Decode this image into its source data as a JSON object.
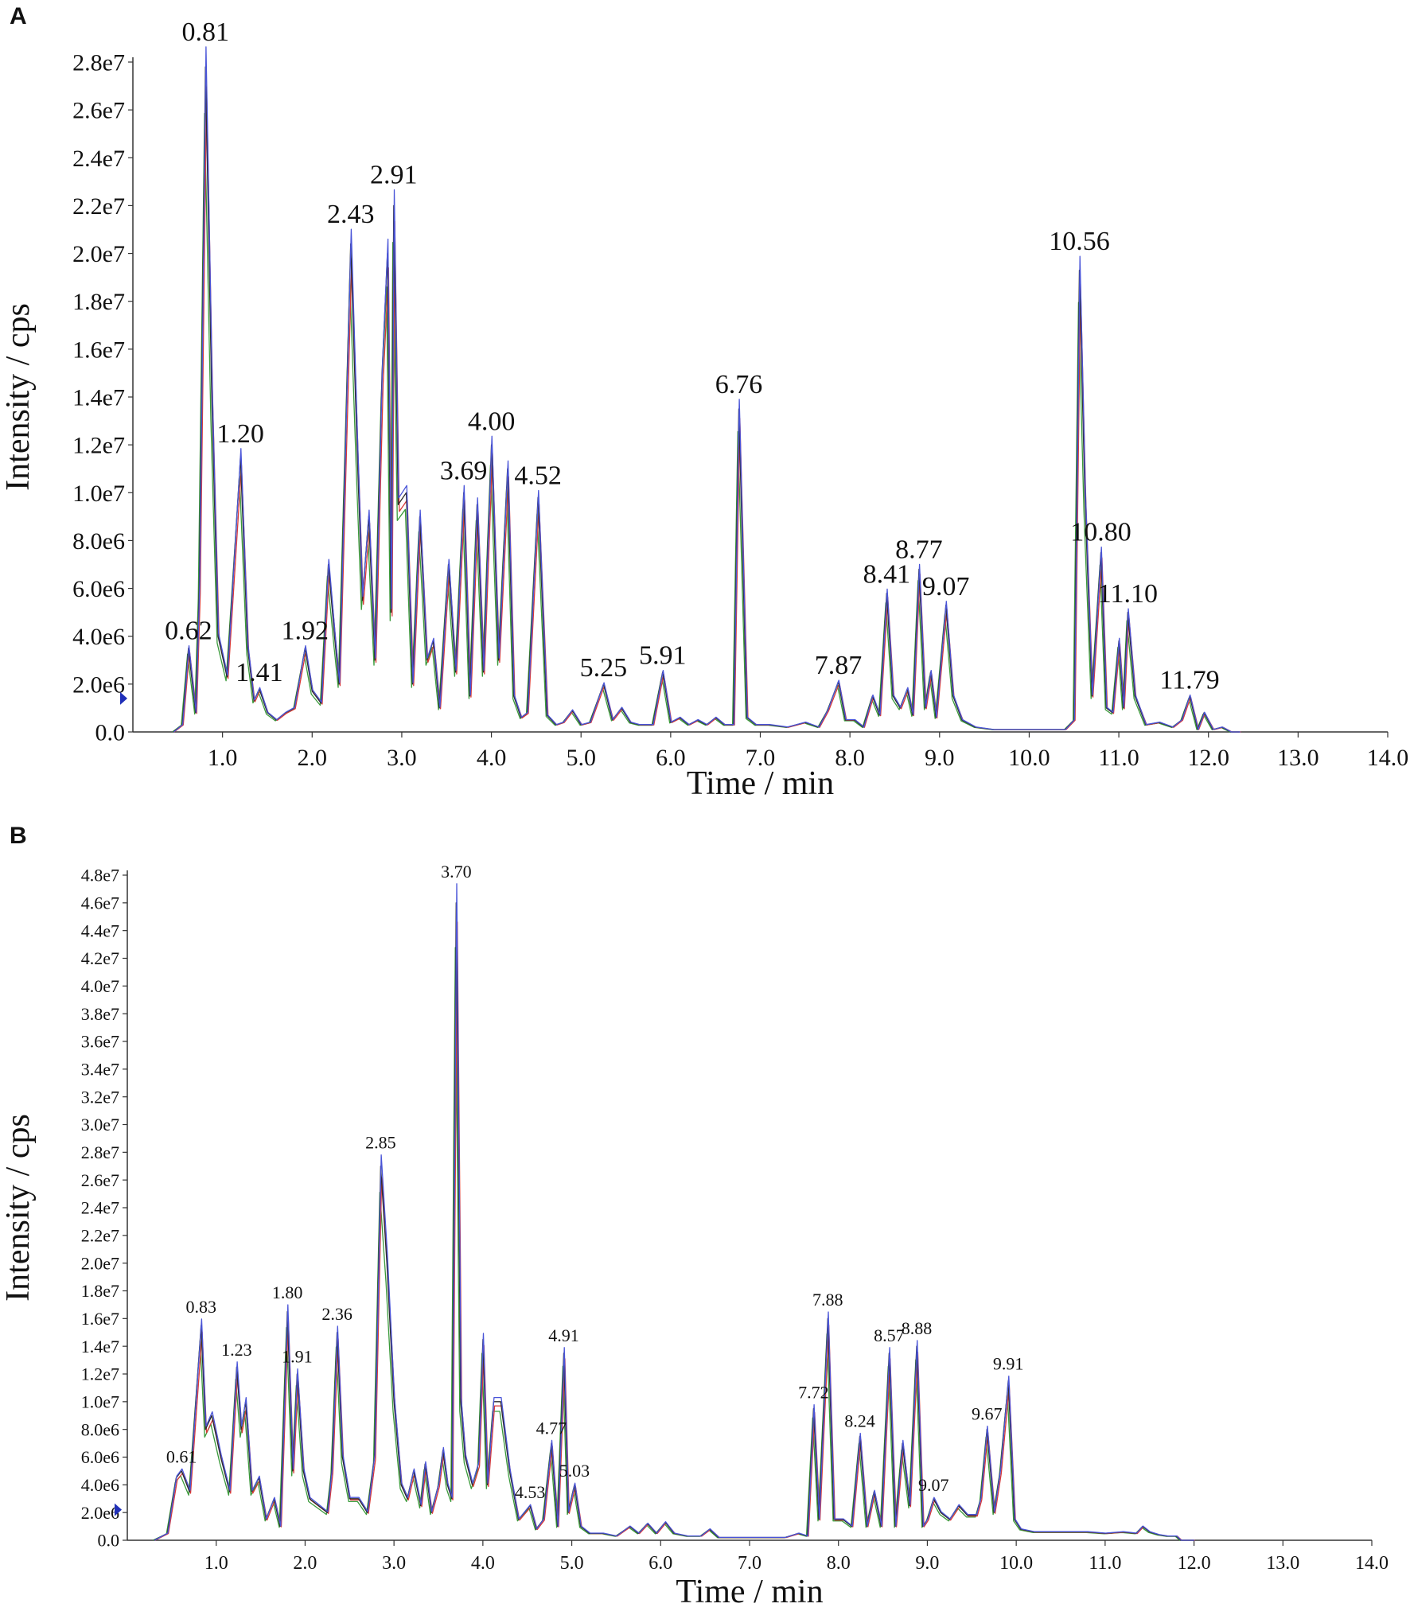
{
  "panels": [
    {
      "id": "A",
      "letter": "A",
      "chart_data": {
        "type": "line",
        "xlabel": "Time / min",
        "ylabel": "Intensity / cps",
        "xlim": [
          0,
          14.0
        ],
        "ylim": [
          0,
          28000000
        ],
        "xticks": [
          "1.0",
          "2.0",
          "3.0",
          "4.0",
          "5.0",
          "6.0",
          "7.0",
          "8.0",
          "9.0",
          "10.0",
          "11.0",
          "12.0",
          "13.0",
          "14.0"
        ],
        "yticks": [
          "0.0",
          "2.0e6",
          "4.0e6",
          "6.0e6",
          "8.0e6",
          "1.0e7",
          "1.2e7",
          "1.4e7",
          "1.6e7",
          "1.8e7",
          "2.0e7",
          "2.2e7",
          "2.4e7",
          "2.6e7",
          "2.8e7"
        ],
        "grid": false,
        "series_colors": [
          "#2b2b2b",
          "#d83a3a",
          "#3a9a3a",
          "#4a55d8"
        ],
        "x": [
          0.45,
          0.55,
          0.62,
          0.7,
          0.74,
          0.81,
          0.88,
          0.95,
          1.05,
          1.2,
          1.28,
          1.35,
          1.41,
          1.5,
          1.6,
          1.7,
          1.8,
          1.92,
          2.0,
          2.1,
          2.18,
          2.25,
          2.3,
          2.43,
          2.5,
          2.56,
          2.63,
          2.7,
          2.78,
          2.84,
          2.88,
          2.91,
          2.96,
          3.05,
          3.12,
          3.2,
          3.28,
          3.35,
          3.42,
          3.52,
          3.6,
          3.69,
          3.76,
          3.84,
          3.91,
          4.0,
          4.08,
          4.18,
          4.25,
          4.33,
          4.4,
          4.52,
          4.62,
          4.72,
          4.8,
          4.9,
          5.0,
          5.1,
          5.25,
          5.35,
          5.45,
          5.55,
          5.65,
          5.8,
          5.91,
          6.0,
          6.1,
          6.2,
          6.3,
          6.4,
          6.5,
          6.6,
          6.7,
          6.76,
          6.85,
          6.95,
          7.1,
          7.3,
          7.5,
          7.65,
          7.75,
          7.87,
          7.95,
          8.05,
          8.15,
          8.25,
          8.33,
          8.41,
          8.48,
          8.56,
          8.64,
          8.7,
          8.77,
          8.84,
          8.9,
          8.96,
          9.07,
          9.15,
          9.25,
          9.4,
          9.6,
          9.8,
          10.0,
          10.2,
          10.4,
          10.5,
          10.56,
          10.62,
          10.7,
          10.8,
          10.86,
          10.93,
          11.0,
          11.05,
          11.1,
          11.18,
          11.3,
          11.45,
          11.6,
          11.7,
          11.79,
          11.88,
          11.95,
          12.05,
          12.15,
          12.25,
          12.35
        ],
        "series": [
          {
            "values": [
              0.0,
              0.3,
              3.5,
              0.8,
              6.0,
              27.8,
              14.0,
              4.0,
              2.3,
              11.5,
              3.5,
              1.3,
              1.8,
              0.8,
              0.5,
              0.8,
              1.0,
              3.5,
              1.7,
              1.2,
              7.0,
              4.0,
              2.0,
              20.4,
              12.0,
              5.5,
              9.0,
              3.0,
              15.0,
              20.0,
              5.0,
              22.0,
              9.5,
              10.0,
              2.0,
              9.0,
              3.0,
              3.8,
              1.0,
              7.0,
              2.5,
              10.0,
              1.5,
              9.5,
              2.5,
              12.0,
              3.0,
              11.0,
              1.5,
              0.6,
              0.8,
              9.8,
              0.7,
              0.3,
              0.4,
              0.9,
              0.3,
              0.4,
              2.0,
              0.5,
              1.0,
              0.4,
              0.3,
              0.3,
              2.5,
              0.4,
              0.6,
              0.3,
              0.5,
              0.3,
              0.6,
              0.3,
              0.3,
              13.5,
              0.6,
              0.3,
              0.3,
              0.2,
              0.4,
              0.2,
              0.9,
              2.1,
              0.5,
              0.5,
              0.2,
              1.5,
              0.7,
              5.8,
              1.5,
              1.0,
              1.8,
              0.7,
              6.8,
              1.0,
              2.5,
              0.6,
              5.3,
              1.5,
              0.5,
              0.2,
              0.1,
              0.1,
              0.1,
              0.1,
              0.1,
              0.5,
              19.3,
              10.0,
              1.5,
              7.5,
              1.0,
              0.8,
              3.8,
              1.0,
              5.0,
              1.5,
              0.3,
              0.4,
              0.2,
              0.5,
              1.5,
              0.1,
              0.8,
              0.1,
              0.2,
              0.0,
              0.0
            ]
          }
        ],
        "annotations": [
          {
            "x": 0.81,
            "label": "0.81"
          },
          {
            "x": 0.62,
            "label": "0.62"
          },
          {
            "x": 1.2,
            "label": "1.20"
          },
          {
            "x": 1.41,
            "label": "1.41"
          },
          {
            "x": 1.92,
            "label": "1.92"
          },
          {
            "x": 2.43,
            "label": "2.43"
          },
          {
            "x": 2.91,
            "label": "2.91"
          },
          {
            "x": 3.69,
            "label": "3.69"
          },
          {
            "x": 4.0,
            "label": "4.00"
          },
          {
            "x": 4.52,
            "label": "4.52"
          },
          {
            "x": 5.25,
            "label": "5.25"
          },
          {
            "x": 5.91,
            "label": "5.91"
          },
          {
            "x": 6.76,
            "label": "6.76"
          },
          {
            "x": 7.87,
            "label": "7.87"
          },
          {
            "x": 8.41,
            "label": "8.41"
          },
          {
            "x": 8.77,
            "label": "8.77"
          },
          {
            "x": 9.07,
            "label": "9.07"
          },
          {
            "x": 10.56,
            "label": "10.56"
          },
          {
            "x": 10.8,
            "label": "10.80"
          },
          {
            "x": 11.1,
            "label": "11.10"
          },
          {
            "x": 11.79,
            "label": "11.79"
          }
        ],
        "marker_y": 1400000
      }
    },
    {
      "id": "B",
      "letter": "B",
      "chart_data": {
        "type": "line",
        "xlabel": "Time / min",
        "ylabel": "Intensity / cps",
        "xlim": [
          0,
          14.0
        ],
        "ylim": [
          0,
          48000000
        ],
        "xticks": [
          "1.0",
          "2.0",
          "3.0",
          "4.0",
          "5.0",
          "6.0",
          "7.0",
          "8.0",
          "9.0",
          "10.0",
          "11.0",
          "12.0",
          "13.0",
          "14.0"
        ],
        "yticks": [
          "0.0",
          "2.0e6",
          "4.0e6",
          "6.0e6",
          "8.0e6",
          "1.0e7",
          "1.2e7",
          "1.4e7",
          "1.6e7",
          "1.8e7",
          "2.0e7",
          "2.2e7",
          "2.4e7",
          "2.6e7",
          "2.8e7",
          "3.0e7",
          "3.2e7",
          "3.4e7",
          "3.6e7",
          "3.8e7",
          "4.0e7",
          "4.2e7",
          "4.4e7",
          "4.6e7",
          "4.8e7"
        ],
        "grid": false,
        "series_colors": [
          "#2b2b2b",
          "#d83a3a",
          "#3a9a3a",
          "#4a55d8"
        ],
        "x": [
          0.3,
          0.45,
          0.55,
          0.61,
          0.7,
          0.83,
          0.88,
          0.95,
          1.05,
          1.15,
          1.23,
          1.28,
          1.33,
          1.4,
          1.48,
          1.56,
          1.65,
          1.72,
          1.8,
          1.86,
          1.91,
          1.98,
          2.05,
          2.15,
          2.25,
          2.3,
          2.36,
          2.42,
          2.5,
          2.6,
          2.7,
          2.78,
          2.85,
          2.92,
          3.0,
          3.08,
          3.15,
          3.22,
          3.3,
          3.35,
          3.42,
          3.5,
          3.55,
          3.6,
          3.65,
          3.7,
          3.75,
          3.8,
          3.88,
          3.95,
          4.0,
          4.05,
          4.12,
          4.2,
          4.3,
          4.4,
          4.53,
          4.6,
          4.68,
          4.77,
          4.84,
          4.91,
          4.96,
          5.03,
          5.1,
          5.2,
          5.35,
          5.5,
          5.65,
          5.75,
          5.85,
          5.95,
          6.05,
          6.15,
          6.3,
          6.45,
          6.55,
          6.65,
          6.8,
          7.0,
          7.2,
          7.4,
          7.55,
          7.65,
          7.72,
          7.78,
          7.88,
          7.95,
          8.05,
          8.15,
          8.24,
          8.32,
          8.4,
          8.48,
          8.57,
          8.64,
          8.72,
          8.8,
          8.88,
          8.95,
          9.0,
          9.07,
          9.15,
          9.25,
          9.35,
          9.45,
          9.55,
          9.6,
          9.67,
          9.75,
          9.82,
          9.91,
          9.98,
          10.05,
          10.2,
          10.4,
          10.6,
          10.8,
          11.0,
          11.2,
          11.35,
          11.42,
          11.5,
          11.6,
          11.7,
          11.8,
          11.85,
          12.0
        ],
        "series": [
          {
            "values": [
              0.0,
              0.5,
              4.5,
              5.0,
              3.5,
              15.5,
              8.0,
              9.0,
              6.0,
              3.5,
              12.5,
              8.0,
              10.0,
              3.5,
              4.5,
              1.5,
              3.0,
              1.0,
              16.5,
              5.0,
              12.0,
              5.0,
              3.0,
              2.5,
              2.0,
              5.0,
              15.0,
              6.0,
              3.0,
              3.0,
              2.0,
              6.0,
              27.0,
              20.0,
              10.0,
              4.0,
              3.0,
              5.0,
              2.5,
              5.5,
              2.0,
              4.0,
              6.5,
              4.0,
              3.0,
              46.0,
              10.0,
              6.0,
              4.0,
              5.5,
              14.5,
              4.0,
              10.0,
              10.0,
              5.0,
              1.5,
              2.5,
              0.8,
              1.5,
              7.0,
              1.0,
              13.5,
              2.0,
              4.0,
              1.0,
              0.5,
              0.5,
              0.3,
              1.0,
              0.5,
              1.2,
              0.5,
              1.3,
              0.5,
              0.3,
              0.3,
              0.8,
              0.2,
              0.2,
              0.2,
              0.2,
              0.2,
              0.5,
              0.3,
              9.5,
              1.5,
              16.0,
              1.5,
              1.5,
              1.0,
              7.5,
              1.0,
              3.5,
              1.0,
              13.5,
              1.0,
              7.0,
              2.5,
              14.0,
              1.0,
              1.5,
              3.0,
              2.0,
              1.5,
              2.5,
              1.8,
              1.8,
              3.0,
              8.0,
              2.0,
              5.0,
              11.5,
              1.5,
              0.8,
              0.6,
              0.6,
              0.6,
              0.6,
              0.5,
              0.6,
              0.5,
              1.0,
              0.6,
              0.4,
              0.3,
              0.3,
              0.0,
              0.0
            ]
          }
        ],
        "annotations": [
          {
            "x": 3.7,
            "label": "3.70"
          },
          {
            "x": 2.85,
            "label": "2.85"
          },
          {
            "x": 0.83,
            "label": "0.83"
          },
          {
            "x": 0.61,
            "label": "0.61"
          },
          {
            "x": 1.23,
            "label": "1.23"
          },
          {
            "x": 1.8,
            "label": "1.80"
          },
          {
            "x": 1.91,
            "label": "1.91"
          },
          {
            "x": 2.36,
            "label": "2.36"
          },
          {
            "x": 4.53,
            "label": "4.53"
          },
          {
            "x": 4.77,
            "label": "4.77"
          },
          {
            "x": 4.91,
            "label": "4.91"
          },
          {
            "x": 5.03,
            "label": "5.03"
          },
          {
            "x": 7.72,
            "label": "7.72"
          },
          {
            "x": 7.88,
            "label": "7.88"
          },
          {
            "x": 8.24,
            "label": "8.24"
          },
          {
            "x": 8.57,
            "label": "8.57"
          },
          {
            "x": 8.88,
            "label": "8.88"
          },
          {
            "x": 9.07,
            "label": "9.07"
          },
          {
            "x": 9.67,
            "label": "9.67"
          },
          {
            "x": 9.91,
            "label": "9.91"
          }
        ],
        "marker_y": 2200000
      }
    }
  ]
}
